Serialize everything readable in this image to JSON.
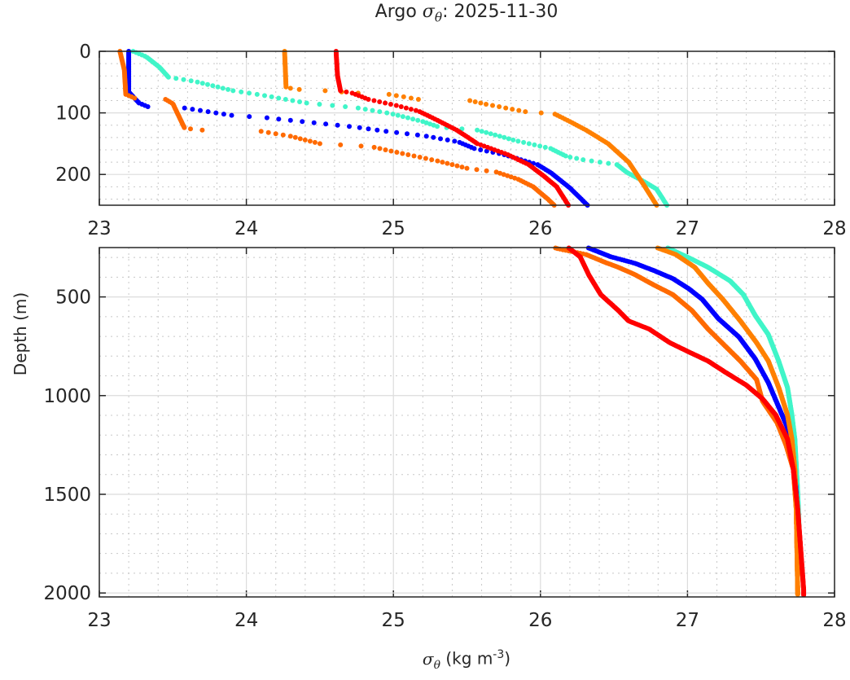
{
  "chart_data": {
    "type": "scatter",
    "title": {
      "prefix": "Argo",
      "symbol": "σ",
      "subscript": "θ",
      "suffix": ": 2025-11-30"
    },
    "xlabel": {
      "symbol": "σ",
      "subscript": "θ",
      "units_prefix": "(kg m",
      "units_exp": "-3",
      "units_suffix": ")"
    },
    "ylabel": "Depth (m)",
    "grid": true,
    "panels": [
      {
        "xlim": [
          23,
          28
        ],
        "ylim": [
          0,
          250
        ],
        "ydir": "reverse",
        "xticks": [
          "23",
          "24",
          "25",
          "26",
          "27",
          "28"
        ],
        "yticks": [
          "0",
          "100",
          "200"
        ],
        "yminor_step": 20
      },
      {
        "xlim": [
          23,
          28
        ],
        "ylim": [
          250,
          2020
        ],
        "ydir": "reverse",
        "xticks": [
          "23",
          "24",
          "25",
          "26",
          "27",
          "28"
        ],
        "yticks": [
          "500",
          "1000",
          "1500",
          "2000"
        ],
        "yminor_step": 100
      }
    ],
    "series": [
      {
        "color": "#40f5c8",
        "points": [
          [
            23.23,
            0
          ],
          [
            23.32,
            9
          ],
          [
            23.41,
            26
          ],
          [
            23.47,
            42
          ],
          [
            23.65,
            49
          ],
          [
            23.91,
            64
          ],
          [
            24.1,
            71
          ],
          [
            24.41,
            84
          ],
          [
            24.76,
            92
          ],
          [
            24.98,
            101
          ],
          [
            25.2,
            114
          ],
          [
            25.31,
            123
          ],
          [
            25.57,
            128
          ],
          [
            25.83,
            145
          ],
          [
            26.07,
            158
          ],
          [
            26.18,
            171
          ],
          [
            26.29,
            176
          ],
          [
            26.52,
            184
          ],
          [
            26.59,
            197
          ],
          [
            26.7,
            211
          ],
          [
            26.79,
            224
          ],
          [
            26.86,
            250
          ],
          [
            27.03,
            309
          ],
          [
            27.14,
            350
          ],
          [
            27.29,
            419
          ],
          [
            27.38,
            488
          ],
          [
            27.46,
            593
          ],
          [
            27.55,
            691
          ],
          [
            27.62,
            825
          ],
          [
            27.68,
            959
          ],
          [
            27.71,
            1098
          ],
          [
            27.73,
            1220
          ],
          [
            27.75,
            1500
          ],
          [
            27.76,
            1700
          ]
        ]
      },
      {
        "color": "#0000ff",
        "points": [
          [
            23.2,
            0
          ],
          [
            23.2,
            66
          ],
          [
            23.27,
            84
          ],
          [
            23.34,
            91
          ],
          [
            23.58,
            92
          ],
          [
            23.9,
            104
          ],
          [
            24.14,
            108
          ],
          [
            24.5,
            117
          ],
          [
            24.74,
            123
          ],
          [
            24.95,
            130
          ],
          [
            25.2,
            137
          ],
          [
            25.44,
            147
          ],
          [
            25.55,
            158
          ],
          [
            25.74,
            167
          ],
          [
            25.98,
            184
          ],
          [
            26.07,
            197
          ],
          [
            26.2,
            222
          ],
          [
            26.32,
            250
          ],
          [
            26.48,
            297
          ],
          [
            26.64,
            329
          ],
          [
            26.77,
            366
          ],
          [
            26.9,
            407
          ],
          [
            27.01,
            459
          ],
          [
            27.1,
            512
          ],
          [
            27.21,
            610
          ],
          [
            27.35,
            703
          ],
          [
            27.46,
            813
          ],
          [
            27.55,
            935
          ],
          [
            27.62,
            1057
          ],
          [
            27.68,
            1163
          ],
          [
            27.72,
            1300
          ],
          [
            27.74,
            1500
          ],
          [
            27.75,
            1700
          ]
        ]
      },
      {
        "color": "#ff6a00",
        "points": [
          [
            23.14,
            0
          ],
          [
            23.17,
            30
          ],
          [
            23.18,
            70
          ],
          [
            23.25,
            77
          ],
          [
            23.45,
            78
          ],
          [
            23.5,
            85
          ],
          [
            23.55,
            110
          ],
          [
            23.58,
            125
          ],
          [
            23.7,
            128
          ],
          [
            24.1,
            130
          ],
          [
            24.3,
            138
          ],
          [
            24.5,
            150
          ],
          [
            24.85,
            155
          ],
          [
            25.1,
            168
          ],
          [
            25.3,
            178
          ],
          [
            25.5,
            190
          ],
          [
            25.7,
            196
          ],
          [
            25.85,
            208
          ],
          [
            25.95,
            220
          ],
          [
            26.05,
            240
          ],
          [
            26.12,
            256
          ],
          [
            26.31,
            285
          ],
          [
            26.44,
            325
          ],
          [
            26.53,
            350
          ],
          [
            26.64,
            386
          ],
          [
            26.77,
            439
          ],
          [
            26.9,
            488
          ],
          [
            27.03,
            569
          ],
          [
            27.14,
            663
          ],
          [
            27.25,
            744
          ],
          [
            27.36,
            825
          ],
          [
            27.47,
            919
          ],
          [
            27.51,
            1028
          ],
          [
            27.61,
            1138
          ],
          [
            27.67,
            1250
          ],
          [
            27.72,
            1374
          ],
          [
            27.74,
            1577
          ],
          [
            27.75,
            2010
          ]
        ]
      },
      {
        "color": "#ff8000",
        "points": [
          [
            24.26,
            0
          ],
          [
            24.27,
            59
          ],
          [
            24.36,
            62
          ],
          [
            24.48,
            63
          ],
          [
            24.76,
            68
          ],
          [
            24.97,
            70
          ],
          [
            25.17,
            78
          ],
          [
            25.52,
            80
          ],
          [
            25.63,
            86
          ],
          [
            25.92,
            99
          ],
          [
            26.09,
            101
          ],
          [
            26.2,
            114
          ],
          [
            26.31,
            128
          ],
          [
            26.46,
            150
          ],
          [
            26.6,
            180
          ],
          [
            26.7,
            216
          ],
          [
            26.79,
            250
          ],
          [
            26.92,
            285
          ],
          [
            27.05,
            350
          ],
          [
            27.14,
            431
          ],
          [
            27.24,
            512
          ],
          [
            27.36,
            622
          ],
          [
            27.47,
            732
          ],
          [
            27.55,
            825
          ],
          [
            27.62,
            959
          ],
          [
            27.68,
            1098
          ],
          [
            27.71,
            1220
          ],
          [
            27.73,
            1374
          ],
          [
            27.74,
            1577
          ],
          [
            27.75,
            2010
          ]
        ]
      },
      {
        "color": "#ff0000",
        "points": [
          [
            24.61,
            0
          ],
          [
            24.62,
            40
          ],
          [
            24.64,
            64
          ],
          [
            24.72,
            68
          ],
          [
            24.83,
            78
          ],
          [
            25.02,
            88
          ],
          [
            25.17,
            97
          ],
          [
            25.3,
            112
          ],
          [
            25.43,
            128
          ],
          [
            25.54,
            145
          ],
          [
            25.57,
            150
          ],
          [
            25.77,
            167
          ],
          [
            25.92,
            184
          ],
          [
            26.02,
            202
          ],
          [
            26.11,
            220
          ],
          [
            26.19,
            250
          ],
          [
            26.27,
            297
          ],
          [
            26.33,
            390
          ],
          [
            26.41,
            488
          ],
          [
            26.53,
            569
          ],
          [
            26.6,
            622
          ],
          [
            26.74,
            663
          ],
          [
            26.88,
            732
          ],
          [
            26.99,
            772
          ],
          [
            27.14,
            825
          ],
          [
            27.25,
            878
          ],
          [
            27.4,
            947
          ],
          [
            27.51,
            1016
          ],
          [
            27.6,
            1098
          ],
          [
            27.68,
            1220
          ],
          [
            27.72,
            1374
          ],
          [
            27.75,
            1577
          ],
          [
            27.77,
            1780
          ],
          [
            27.79,
            1984
          ],
          [
            27.79,
            2012
          ]
        ]
      }
    ]
  }
}
